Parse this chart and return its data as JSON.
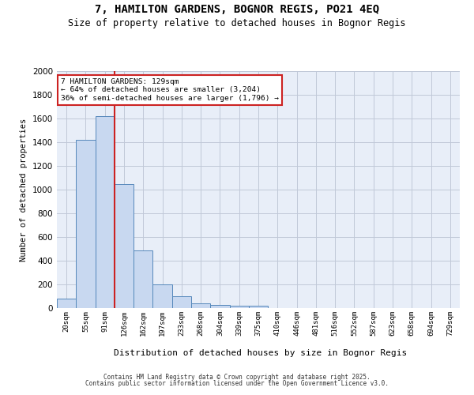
{
  "title": "7, HAMILTON GARDENS, BOGNOR REGIS, PO21 4EQ",
  "subtitle": "Size of property relative to detached houses in Bognor Regis",
  "xlabel": "Distribution of detached houses by size in Bognor Regis",
  "ylabel": "Number of detached properties",
  "bar_labels": [
    "20sqm",
    "55sqm",
    "91sqm",
    "126sqm",
    "162sqm",
    "197sqm",
    "233sqm",
    "268sqm",
    "304sqm",
    "339sqm",
    "375sqm",
    "410sqm",
    "446sqm",
    "481sqm",
    "516sqm",
    "552sqm",
    "587sqm",
    "623sqm",
    "658sqm",
    "694sqm",
    "729sqm"
  ],
  "bar_values": [
    80,
    1420,
    1620,
    1050,
    490,
    200,
    100,
    40,
    30,
    20,
    20,
    0,
    0,
    0,
    0,
    0,
    0,
    0,
    0,
    0,
    0
  ],
  "bar_color": "#c8d8f0",
  "bar_edge_color": "#5588bb",
  "red_line_x": 2.5,
  "red_line_color": "#cc2222",
  "ylim": [
    0,
    2000
  ],
  "yticks": [
    0,
    200,
    400,
    600,
    800,
    1000,
    1200,
    1400,
    1600,
    1800,
    2000
  ],
  "annotation_title": "7 HAMILTON GARDENS: 129sqm",
  "annotation_line1": "← 64% of detached houses are smaller (3,204)",
  "annotation_line2": "36% of semi-detached houses are larger (1,796) →",
  "annotation_box_color": "#ffffff",
  "annotation_box_edge": "#cc2222",
  "grid_color": "#c0c8d8",
  "background_color": "#e8eef8",
  "footer1": "Contains HM Land Registry data © Crown copyright and database right 2025.",
  "footer2": "Contains public sector information licensed under the Open Government Licence v3.0."
}
